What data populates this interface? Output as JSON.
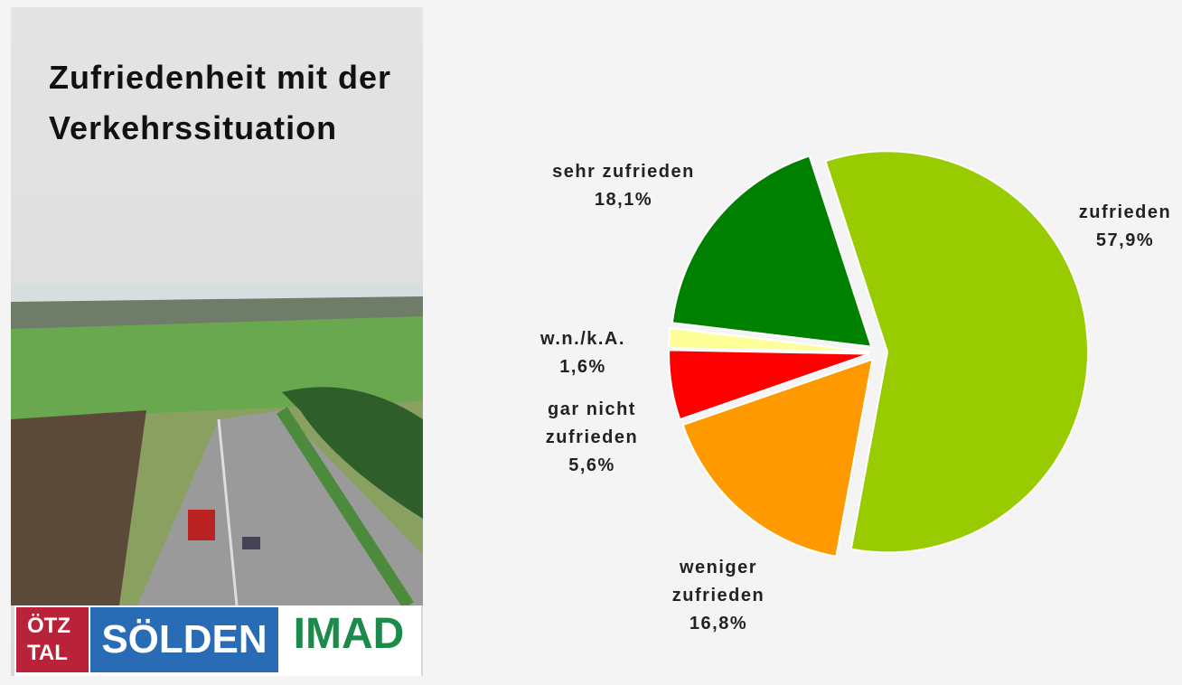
{
  "panel": {
    "title": "Zufriedenheit mit der Verkehrssituation",
    "logos": [
      "ÖTZ TAL",
      "SÖLDEN",
      "IMAD"
    ]
  },
  "chart_data": {
    "type": "pie",
    "categories": [
      "zufrieden",
      "weniger zufrieden",
      "gar nicht zufrieden",
      "w.n./k.A.",
      "sehr zufrieden"
    ],
    "values": [
      57.9,
      16.8,
      5.6,
      1.6,
      18.1
    ],
    "value_labels": [
      "57,9%",
      "16,8%",
      "5,6%",
      "1,6%",
      "18,1%"
    ],
    "colors": [
      "#99cc00",
      "#ff9900",
      "#ff0000",
      "#ffff99",
      "#008000"
    ]
  }
}
